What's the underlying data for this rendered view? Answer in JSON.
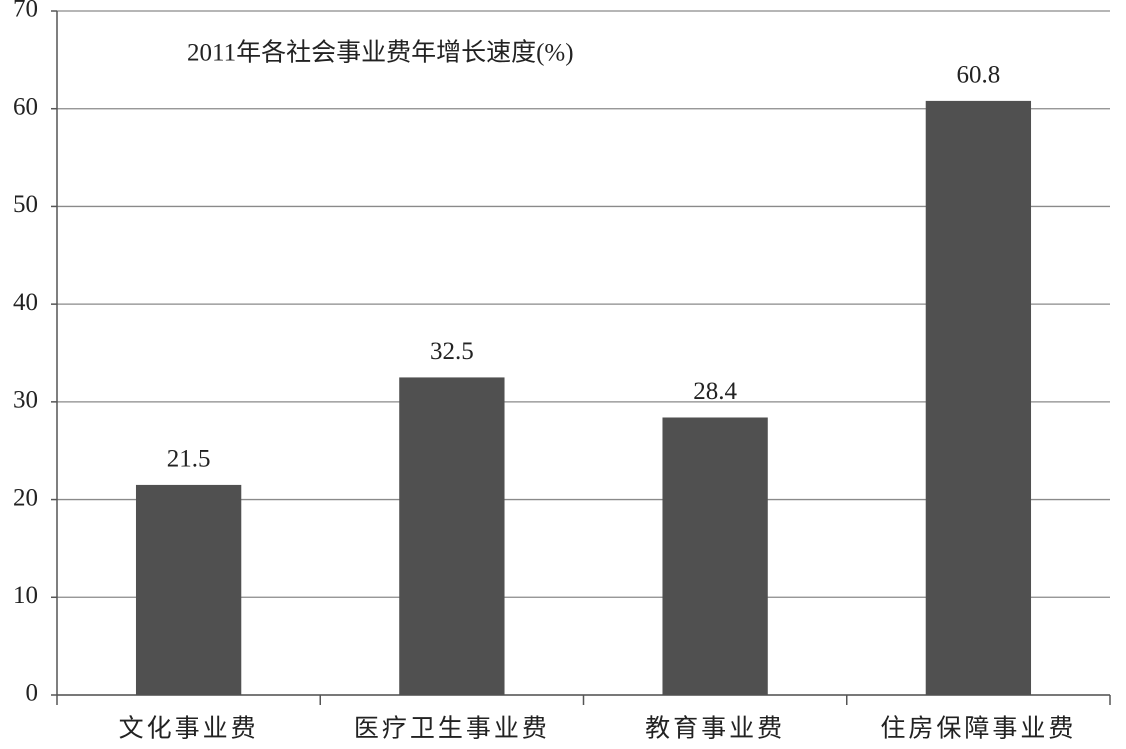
{
  "chart_data": {
    "type": "bar",
    "title": "2011年各社会事业费年增长速度(%)",
    "categories": [
      "文化事业费",
      "医疗卫生事业费",
      "教育事业费",
      "住房保障事业费"
    ],
    "values": [
      21.5,
      32.5,
      28.4,
      60.8
    ],
    "color": "#505050",
    "ylim": [
      0,
      70
    ],
    "yticks": [
      0,
      10,
      20,
      30,
      40,
      50,
      60,
      70
    ],
    "grid": true
  }
}
